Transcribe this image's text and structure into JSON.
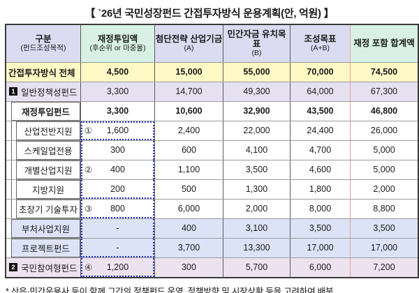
{
  "title": "【 `26년 국민성장펀드 간접투자방식 운용계획(안, 억원) 】",
  "footnote": "* 산은·민간운용사 등이 함께 그간의 정책펀드 운영, 정책방향 및 시장상황 등을 고려하여 배분",
  "colors": {
    "header_lavender": "#dbdcf1",
    "header_mint": "#d8f1e4",
    "total_row_yellow": "#fff9c5",
    "policy_fund_lilac": "#e6e1f1",
    "citizen_fund_lilac": "#ede2ef",
    "ministry_rows_periwinkle": "#dce3f6",
    "dotted_box_blue": "#2233cc",
    "last_column_separator_red": "#ef9a9a"
  },
  "table": {
    "headers": [
      {
        "main": "구분",
        "sub": "(펀드조성목적)"
      },
      {
        "main": "재정투입액",
        "sub": "(후순위 or 마중물)"
      },
      {
        "main": "첨단전략 산업기금",
        "sub": "(A)"
      },
      {
        "main": "민간자금 유치목표",
        "sub": "(B)"
      },
      {
        "main": "조성목표",
        "sub": "(A+B)"
      },
      {
        "main": "재정 포함 합계액",
        "sub": ""
      }
    ],
    "rows": [
      {
        "label": "간접투자방식 전체",
        "badge": "",
        "circle": "",
        "values": [
          "4,500",
          "15,000",
          "55,000",
          "70,000",
          "74,500"
        ]
      },
      {
        "label": "일반정책성펀드",
        "badge": "1",
        "circle": "",
        "values": [
          "3,300",
          "14,700",
          "49,300",
          "64,000",
          "67,300"
        ]
      },
      {
        "label": "재정투입펀드",
        "badge": "",
        "circle": "",
        "values": [
          "3,300",
          "10,600",
          "32,900",
          "43,500",
          "46,800"
        ]
      },
      {
        "label": "산업전반지원",
        "badge": "",
        "circle": "①",
        "values": [
          "1,600",
          "2,400",
          "22,000",
          "24,400",
          "26,000"
        ]
      },
      {
        "label": "스케일업전용",
        "badge": "",
        "circle": "",
        "values": [
          "300",
          "600",
          "4,100",
          "4,700",
          "5,000"
        ]
      },
      {
        "label": "개별산업지원",
        "badge": "",
        "circle": "②",
        "values": [
          "400",
          "1,100",
          "3,500",
          "4,600",
          "5,000"
        ]
      },
      {
        "label": "지방지원",
        "badge": "",
        "circle": "",
        "values": [
          "200",
          "500",
          "1,300",
          "1,800",
          "2,000"
        ]
      },
      {
        "label": "초장기 기술투자",
        "badge": "",
        "circle": "③",
        "values": [
          "800",
          "6,000",
          "2,000",
          "8,000",
          "8,800"
        ]
      },
      {
        "label": "부처사업지원",
        "badge": "",
        "circle": "",
        "values": [
          "-",
          "400",
          "3,100",
          "3,500",
          "3,500"
        ]
      },
      {
        "label": "프로젝트펀드",
        "badge": "",
        "circle": "",
        "values": [
          "-",
          "3,700",
          "13,300",
          "17,000",
          "17,000"
        ]
      },
      {
        "label": "국민참여형펀드",
        "badge": "2",
        "circle": "④",
        "values": [
          "1,200",
          "300",
          "5,700",
          "6,000",
          "7,200"
        ]
      }
    ]
  }
}
